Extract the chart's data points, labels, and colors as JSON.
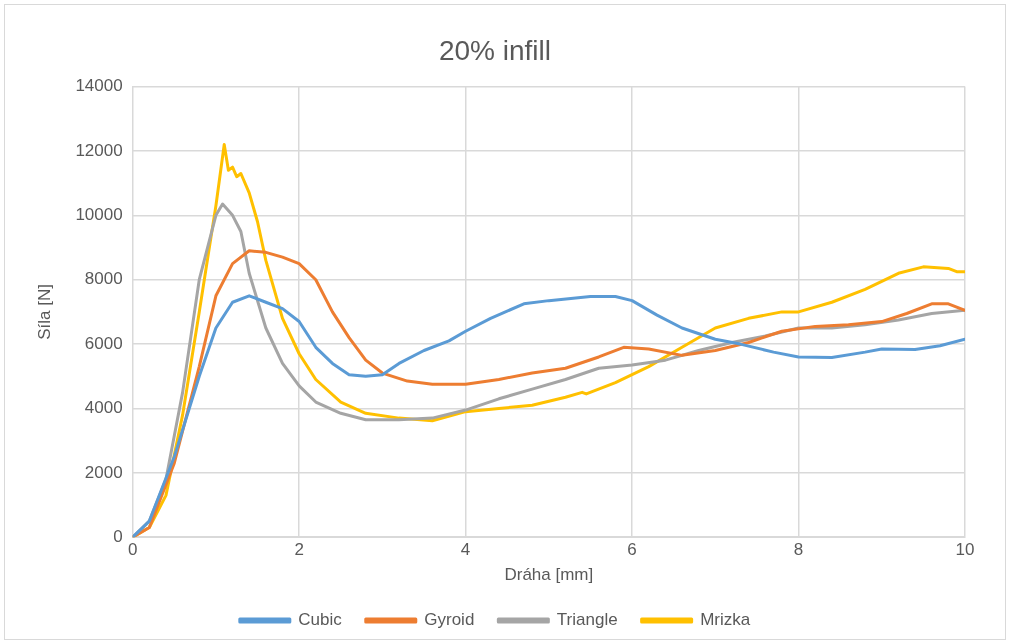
{
  "chart_data": {
    "type": "line",
    "title": "20% infill",
    "xlabel": "Dráha [mm]",
    "ylabel": "Síla [N]",
    "xlim": [
      0,
      10
    ],
    "xticks": [
      0,
      2,
      4,
      6,
      8,
      10
    ],
    "ylim": [
      0,
      14000
    ],
    "yticks": [
      0,
      2000,
      4000,
      6000,
      8000,
      10000,
      12000,
      14000
    ],
    "grid": true,
    "legend": "bottom",
    "marker": "none",
    "line_style": "solid",
    "series": [
      {
        "name": "Cubic",
        "color": "#5b9bd5",
        "x": [
          0,
          0.2,
          0.5,
          0.8,
          1.0,
          1.2,
          1.4,
          1.6,
          1.8,
          2.0,
          2.2,
          2.4,
          2.6,
          2.8,
          3.0,
          3.2,
          3.5,
          3.8,
          4.0,
          4.3,
          4.7,
          5.0,
          5.5,
          5.8,
          6.0,
          6.3,
          6.6,
          7.0,
          7.3,
          7.7,
          8.0,
          8.4,
          8.8,
          9.0,
          9.4,
          9.7,
          10
        ],
        "values": [
          0,
          500,
          2500,
          5000,
          6500,
          7300,
          7500,
          7300,
          7100,
          6700,
          5900,
          5400,
          5050,
          5000,
          5050,
          5400,
          5800,
          6100,
          6400,
          6800,
          7250,
          7350,
          7480,
          7480,
          7350,
          6900,
          6500,
          6150,
          6000,
          5750,
          5600,
          5580,
          5750,
          5850,
          5830,
          5950,
          6150
        ]
      },
      {
        "name": "Gyroid",
        "color": "#ed7d31",
        "x": [
          0,
          0.2,
          0.5,
          0.8,
          1.0,
          1.2,
          1.4,
          1.6,
          1.8,
          2.0,
          2.2,
          2.4,
          2.6,
          2.8,
          3.0,
          3.3,
          3.6,
          4.0,
          4.4,
          4.8,
          5.2,
          5.6,
          5.9,
          6.2,
          6.6,
          7.0,
          7.4,
          7.8,
          8.2,
          8.6,
          9.0,
          9.3,
          9.6,
          9.8,
          10
        ],
        "values": [
          0,
          300,
          2300,
          5300,
          7500,
          8500,
          8900,
          8850,
          8700,
          8500,
          8000,
          7000,
          6200,
          5500,
          5100,
          4850,
          4750,
          4750,
          4900,
          5100,
          5250,
          5600,
          5900,
          5850,
          5650,
          5800,
          6050,
          6400,
          6550,
          6600,
          6700,
          6950,
          7250,
          7250,
          7050
        ]
      },
      {
        "name": "Triangle",
        "color": "#a5a5a5",
        "x": [
          0,
          0.2,
          0.4,
          0.6,
          0.8,
          1.0,
          1.08,
          1.2,
          1.3,
          1.4,
          1.6,
          1.8,
          2.0,
          2.2,
          2.5,
          2.8,
          3.2,
          3.6,
          4.0,
          4.4,
          4.8,
          5.2,
          5.6,
          6.0,
          6.4,
          6.8,
          7.2,
          7.6,
          8.0,
          8.4,
          8.8,
          9.2,
          9.6,
          10
        ],
        "values": [
          0,
          500,
          1800,
          4500,
          8000,
          10000,
          10350,
          10000,
          9500,
          8200,
          6500,
          5400,
          4700,
          4200,
          3850,
          3650,
          3650,
          3700,
          3950,
          4300,
          4600,
          4900,
          5250,
          5350,
          5500,
          5800,
          6050,
          6250,
          6500,
          6500,
          6600,
          6750,
          6950,
          7050
        ]
      },
      {
        "name": "Mrizka",
        "color": "#ffc000",
        "x": [
          0,
          0.2,
          0.4,
          0.6,
          0.8,
          1.0,
          1.1,
          1.15,
          1.2,
          1.25,
          1.3,
          1.4,
          1.5,
          1.6,
          1.8,
          2.0,
          2.2,
          2.5,
          2.8,
          3.2,
          3.6,
          4.0,
          4.4,
          4.8,
          5.2,
          5.4,
          5.45,
          5.8,
          6.2,
          6.6,
          7.0,
          7.4,
          7.8,
          8.0,
          8.4,
          8.8,
          9.2,
          9.5,
          9.8,
          9.9,
          10
        ],
        "values": [
          0,
          300,
          1300,
          3800,
          7000,
          10300,
          12200,
          11400,
          11500,
          11200,
          11300,
          10700,
          9800,
          8600,
          6800,
          5700,
          4900,
          4200,
          3850,
          3700,
          3620,
          3900,
          4000,
          4100,
          4350,
          4500,
          4450,
          4800,
          5300,
          5900,
          6500,
          6800,
          7000,
          7000,
          7300,
          7700,
          8200,
          8400,
          8350,
          8250,
          8250
        ]
      }
    ]
  }
}
